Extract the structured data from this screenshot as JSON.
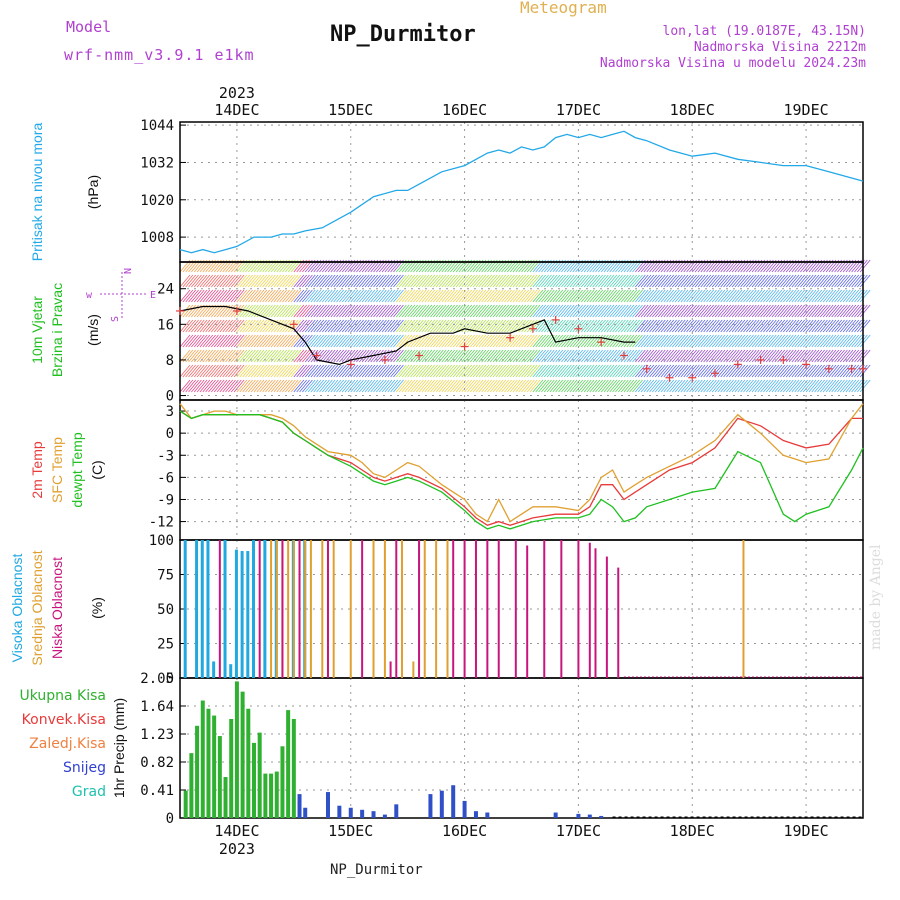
{
  "header": {
    "model_label": "Model",
    "model_name": "wrf-nmm_v3.9.1 e1km",
    "title": "NP_Durmitor",
    "product": "Meteogram",
    "location_line1": "lon,lat (19.0187E, 43.15N)",
    "location_line2": "Nadmorska Visina 2212m",
    "location_line3": "Nadmorska Visina u modelu 2024.23m"
  },
  "footer_station": "NP_Durmitor",
  "watermark": "made by Angel",
  "time_axis": {
    "year": "2023",
    "days": [
      "14DEC",
      "15DEC",
      "16DEC",
      "17DEC",
      "18DEC",
      "19DEC"
    ]
  },
  "colors": {
    "pressure": "#22a8e8",
    "t2m": "#e83a3a",
    "sfc": "#e0a030",
    "dewpt": "#20c020",
    "high_cloud": "#20a8e0",
    "mid_cloud": "#e0a030",
    "low_cloud": "#c8157e",
    "total_precip": "#30b030",
    "snow": "#3050c8",
    "wind_speed_line": "#000000",
    "gust": "#e04040"
  },
  "chart_data": [
    {
      "type": "line",
      "panel": "pressure",
      "ylabel_main": "Pritisak na nivou mora",
      "ylabel_unit": "(hPa)",
      "yticks": [
        1008,
        1020,
        1032,
        1044
      ],
      "ylim": [
        1000,
        1045
      ],
      "x": [
        -0.5,
        -0.4,
        -0.3,
        -0.2,
        -0.1,
        0.0,
        0.15,
        0.3,
        0.4,
        0.5,
        0.6,
        0.75,
        0.9,
        1.0,
        1.2,
        1.4,
        1.5,
        1.6,
        1.8,
        2.0,
        2.2,
        2.3,
        2.4,
        2.5,
        2.6,
        2.7,
        2.8,
        2.9,
        3.0,
        3.1,
        3.2,
        3.3,
        3.4,
        3.5,
        3.6,
        3.8,
        4.0,
        4.2,
        4.4,
        4.6,
        4.8,
        5.0,
        5.2,
        5.4,
        5.5
      ],
      "series": [
        {
          "values": [
            1004,
            1003,
            1004,
            1003,
            1004,
            1005,
            1008,
            1008,
            1009,
            1009,
            1010,
            1011,
            1014,
            1016,
            1021,
            1023,
            1023,
            1025,
            1029,
            1031,
            1035,
            1036,
            1035,
            1037,
            1036,
            1037,
            1040,
            1041,
            1040,
            1041,
            1040,
            1041,
            1042,
            1040,
            1039,
            1036,
            1034,
            1035,
            1033,
            1032,
            1031,
            1031,
            1029,
            1027,
            1026
          ]
        }
      ]
    },
    {
      "type": "line",
      "panel": "wind",
      "ylabel_main": "10m Vjetar",
      "ylabel_sub": "Brzina i Pravac",
      "ylabel_unit": "(m/s)",
      "compass": [
        "w",
        "N",
        "E",
        "S"
      ],
      "yticks": [
        0,
        8,
        16,
        24
      ],
      "ylim": [
        -1,
        30
      ],
      "x": [
        -0.5,
        -0.3,
        -0.1,
        0.1,
        0.3,
        0.5,
        0.6,
        0.7,
        0.9,
        1.0,
        1.2,
        1.4,
        1.5,
        1.7,
        1.9,
        2.0,
        2.2,
        2.4,
        2.6,
        2.7,
        2.8,
        3.0,
        3.2,
        3.4,
        3.5
      ],
      "series": [
        {
          "name": "speed",
          "values": [
            19,
            20,
            20,
            19,
            17,
            15,
            12,
            8,
            7,
            8,
            9,
            10,
            12,
            14,
            14,
            15,
            14,
            14,
            16,
            17,
            12,
            13,
            13,
            12,
            12
          ]
        }
      ],
      "gust_x": [
        -0.5,
        0.0,
        0.5,
        0.7,
        1.0,
        1.3,
        1.6,
        2.0,
        2.4,
        2.6,
        2.8,
        3.0,
        3.2,
        3.4,
        3.6,
        3.8,
        4.0,
        4.2,
        4.4,
        4.6,
        4.8,
        5.0,
        5.2,
        5.4,
        5.5
      ],
      "gust_values": [
        19,
        19,
        16,
        9,
        7,
        8,
        9,
        11,
        13,
        15,
        17,
        15,
        12,
        9,
        6,
        4,
        4,
        5,
        7,
        8,
        8,
        7,
        6,
        6,
        6
      ]
    },
    {
      "type": "line",
      "panel": "temperature",
      "ylabels": [
        "2m Temp",
        "SFC Temp",
        "dewpt Temp"
      ],
      "ylabel_unit": "(C)",
      "yticks": [
        3,
        0,
        -3,
        -6,
        -9,
        -12
      ],
      "ylim": [
        -14.5,
        4.5
      ],
      "x": [
        -0.5,
        -0.4,
        -0.3,
        -0.2,
        -0.1,
        0.0,
        0.2,
        0.3,
        0.4,
        0.5,
        0.6,
        0.7,
        0.8,
        1.0,
        1.1,
        1.2,
        1.3,
        1.4,
        1.5,
        1.6,
        1.8,
        2.0,
        2.1,
        2.2,
        2.3,
        2.4,
        2.5,
        2.6,
        2.8,
        3.0,
        3.1,
        3.2,
        3.3,
        3.4,
        3.5,
        3.6,
        3.8,
        4.0,
        4.2,
        4.4,
        4.6,
        4.8,
        4.9,
        5.0,
        5.2,
        5.4,
        5.5
      ],
      "series": [
        {
          "name": "2m Temp",
          "values": [
            3,
            2,
            2.5,
            2.5,
            2.5,
            2.5,
            2.5,
            2,
            1.5,
            0,
            -1,
            -2,
            -3,
            -4,
            -5,
            -6,
            -6.5,
            -6,
            -5.5,
            -6,
            -7.5,
            -10,
            -11.5,
            -12.5,
            -12,
            -12.5,
            -12,
            -11.5,
            -11,
            -11,
            -10,
            -7,
            -7,
            -9,
            -8,
            -7,
            -5,
            -4,
            -2,
            2,
            1,
            -1,
            -1.5,
            -2,
            -1.5,
            2,
            2
          ]
        },
        {
          "name": "SFC Temp",
          "values": [
            4,
            2,
            2.5,
            3,
            3,
            2.5,
            2.5,
            2.5,
            2,
            1,
            -0.5,
            -1.5,
            -2.5,
            -3,
            -4,
            -5.5,
            -6,
            -5,
            -4,
            -4.5,
            -7,
            -9,
            -11,
            -12,
            -9,
            -12,
            -11,
            -10,
            -10,
            -10.5,
            -9,
            -6,
            -5,
            -8,
            -7,
            -6,
            -4.5,
            -3,
            -1,
            2.5,
            0,
            -3,
            -3.5,
            -4,
            -3.5,
            2,
            4
          ]
        },
        {
          "name": "dewpt Temp",
          "values": [
            3,
            2,
            2.5,
            2.5,
            2.5,
            2.5,
            2.5,
            2,
            1.5,
            0,
            -1,
            -2,
            -3,
            -4.5,
            -5.5,
            -6.5,
            -7,
            -6.5,
            -6,
            -6.5,
            -8,
            -10.5,
            -12,
            -13,
            -12.5,
            -13,
            -12.5,
            -12,
            -11.5,
            -11.5,
            -11,
            -9,
            -10,
            -12,
            -11.5,
            -10,
            -9,
            -8,
            -7.5,
            -2.5,
            -4,
            -11,
            -12,
            -11,
            -10,
            -5,
            -2
          ]
        }
      ]
    },
    {
      "type": "bar",
      "panel": "cloud",
      "ylabels": [
        "Visoka Oblacnost",
        "Srednja Oblacnost",
        "Niska Oblacnost"
      ],
      "ylabel_unit": "(%)",
      "yticks": [
        0,
        25,
        50,
        75,
        100
      ],
      "ylim": [
        0,
        100
      ],
      "series": [
        {
          "name": "Visoka Oblacnost",
          "x": [
            -0.45,
            -0.35,
            -0.3,
            -0.25,
            -0.2,
            -0.1,
            -0.05,
            0.0,
            0.05,
            0.1,
            0.15,
            0.25,
            0.35,
            0.5,
            0.6
          ],
          "values": [
            100,
            100,
            100,
            100,
            12,
            100,
            10,
            93,
            92,
            92,
            100,
            100,
            100,
            100,
            100
          ]
        },
        {
          "name": "Srednja Oblacnost",
          "x": [
            0.3,
            0.35,
            0.4,
            0.45,
            0.5,
            0.55,
            0.6,
            0.65,
            0.75,
            0.85,
            1.0,
            1.2,
            1.3,
            1.45,
            1.55,
            1.65,
            1.75,
            1.85,
            4.45
          ],
          "values": [
            100,
            100,
            100,
            100,
            100,
            100,
            100,
            100,
            100,
            100,
            100,
            100,
            100,
            100,
            12,
            100,
            100,
            100,
            100
          ]
        },
        {
          "name": "Niska Oblacnost",
          "x": [
            -0.15,
            0.2,
            0.4,
            0.55,
            0.8,
            1.1,
            1.35,
            1.4,
            1.6,
            1.9,
            2.0,
            2.1,
            2.2,
            2.3,
            2.45,
            2.55,
            2.7,
            2.85,
            3.0,
            3.1,
            3.15,
            3.25,
            3.35
          ],
          "values": [
            100,
            100,
            100,
            100,
            100,
            100,
            12,
            100,
            100,
            100,
            100,
            100,
            100,
            100,
            100,
            96,
            100,
            100,
            100,
            98,
            94,
            88,
            80
          ]
        }
      ]
    },
    {
      "type": "bar",
      "panel": "precip",
      "ylabels": [
        "Ukupna Kisa",
        "Konvek.Kisa",
        "Zaledj.Kisa",
        "Snijeg",
        "Grad"
      ],
      "ylabel_unit": "1hr Precip (mm)",
      "yticks": [
        0,
        0.41,
        0.82,
        1.23,
        1.64,
        2.05
      ],
      "ylim": [
        0,
        2.05
      ],
      "series": [
        {
          "name": "Ukupna Kisa",
          "x": [
            -0.45,
            -0.4,
            -0.35,
            -0.3,
            -0.25,
            -0.2,
            -0.15,
            -0.1,
            -0.05,
            0.0,
            0.05,
            0.1,
            0.15,
            0.2,
            0.25,
            0.3,
            0.35,
            0.4,
            0.45,
            0.5
          ],
          "values": [
            0.4,
            0.95,
            1.35,
            1.72,
            1.6,
            1.5,
            1.2,
            0.6,
            1.45,
            2.0,
            1.85,
            1.6,
            1.1,
            1.25,
            0.65,
            0.65,
            0.68,
            1.05,
            1.58,
            1.45
          ]
        },
        {
          "name": "Snijeg",
          "x": [
            0.55,
            0.6,
            0.8,
            0.9,
            1.0,
            1.1,
            1.2,
            1.3,
            1.4,
            1.7,
            1.8,
            1.9,
            2.0,
            2.1,
            2.2,
            2.8,
            3.0,
            3.1,
            3.2
          ],
          "values": [
            0.35,
            0.15,
            0.38,
            0.18,
            0.15,
            0.12,
            0.1,
            0.05,
            0.2,
            0.35,
            0.4,
            0.48,
            0.25,
            0.1,
            0.08,
            0.08,
            0.06,
            0.05,
            0.03
          ]
        }
      ]
    }
  ]
}
